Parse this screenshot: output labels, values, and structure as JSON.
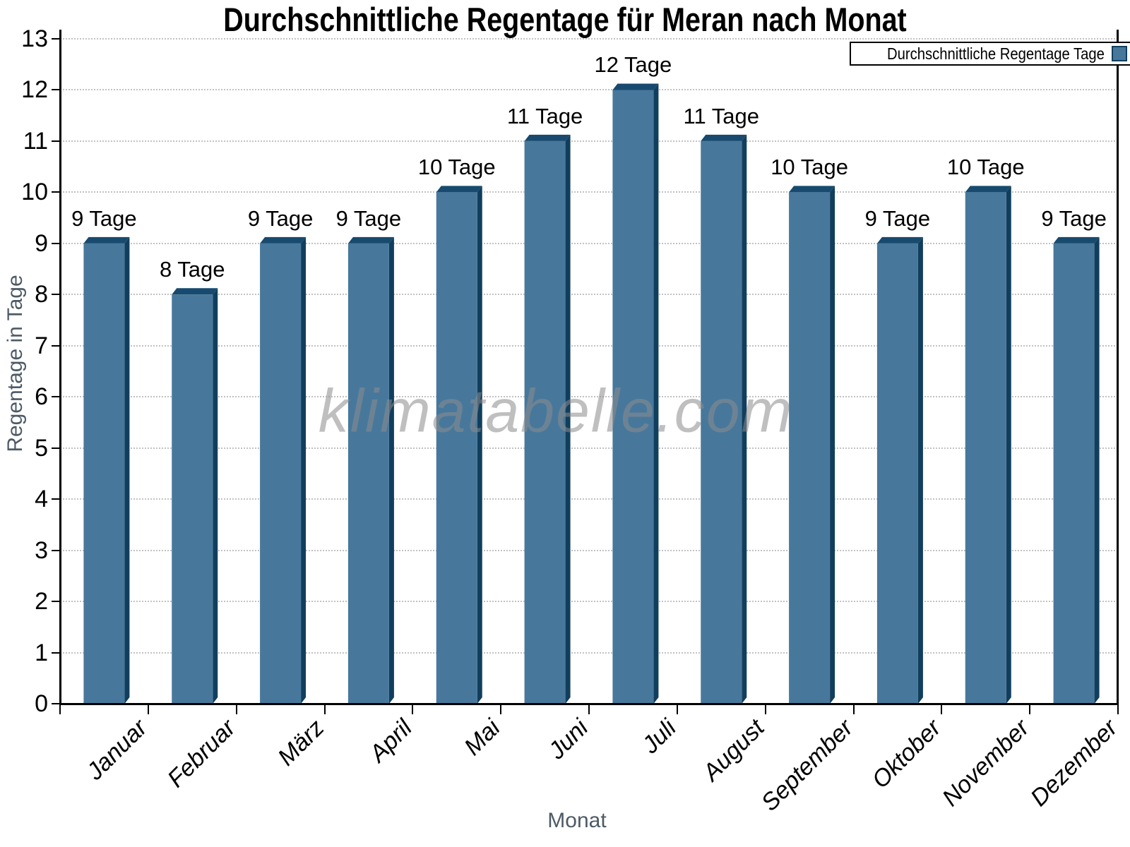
{
  "title": "Durchschnittliche Regentage für Meran nach Monat",
  "legend": {
    "label": "Durchschnittliche Regentage Tage"
  },
  "watermark": "klimatabelle.com",
  "axes": {
    "xlabel": "Monat",
    "ylabel": "Regentage in Tage"
  },
  "chart_data": {
    "type": "bar",
    "title": "Durchschnittliche Regentage für Meran nach Monat",
    "categories": [
      "Januar",
      "Februar",
      "März",
      "April",
      "Mai",
      "Juni",
      "Juli",
      "August",
      "September",
      "Oktober",
      "November",
      "Dezember"
    ],
    "values": [
      9,
      8,
      9,
      9,
      10,
      11,
      12,
      11,
      10,
      9,
      10,
      9
    ],
    "value_labels": [
      "9 Tage",
      "8 Tage",
      "9 Tage",
      "9 Tage",
      "10 Tage",
      "11 Tage",
      "12 Tage",
      "11 Tage",
      "10 Tage",
      "9 Tage",
      "10 Tage",
      "9 Tage"
    ],
    "series_name": "Durchschnittliche Regentage Tage",
    "xlabel": "Monat",
    "ylabel": "Regentage in Tage",
    "ylim": [
      0,
      13
    ],
    "yticks": [
      0,
      1,
      2,
      3,
      4,
      5,
      6,
      7,
      8,
      9,
      10,
      11,
      12,
      13
    ],
    "grid": "horizontal-dotted",
    "legend_position": "top-right",
    "bar_style": "3d",
    "colors": {
      "bar_face": "#47789c",
      "bar_top": "#174a6e",
      "bar_side": "#113e5d",
      "grid": "#c2c2c2",
      "axis": "#000000",
      "axis_title_gray": "#4d5a66",
      "watermark_gray": "#8c8c8c"
    }
  }
}
